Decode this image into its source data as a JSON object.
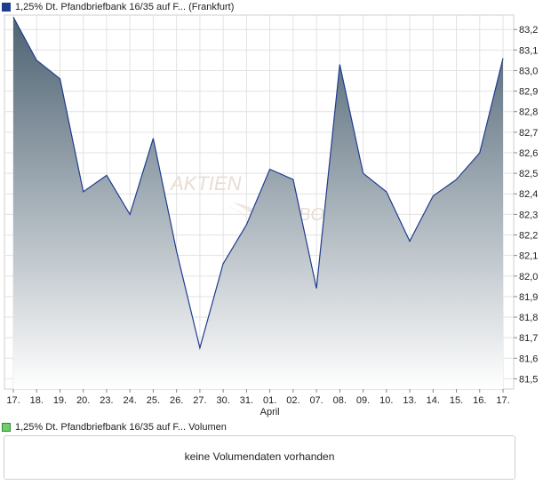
{
  "legend": {
    "price_label": "1,25% Dt. Pfandbriefbank 16/35 auf F... (Frankfurt)",
    "volume_label": "1,25% Dt. Pfandbriefbank 16/35 auf F... Volumen"
  },
  "volume": {
    "empty_message": "keine Volumendaten vorhanden"
  },
  "watermark": {
    "text": "AKTIEN"
  },
  "colors": {
    "line": "#1f3d8f",
    "fill_top": "#4d6272",
    "fill_bottom": "#ffffff",
    "grid": "#e2e2e2"
  },
  "chart_data": {
    "type": "area",
    "x": [
      "17.",
      "18.",
      "19.",
      "20.",
      "23.",
      "24.",
      "25.",
      "26.",
      "27.",
      "30.",
      "31.",
      "01.",
      "02.",
      "07.",
      "08.",
      "09.",
      "10.",
      "13.",
      "14.",
      "15.",
      "16.",
      "17."
    ],
    "month_label": {
      "text": "April",
      "at_index": 11
    },
    "series": [
      {
        "values": [
          83.26,
          83.05,
          82.96,
          82.41,
          82.49,
          82.3,
          82.67,
          82.12,
          81.65,
          82.06,
          82.25,
          82.52,
          82.47,
          81.94,
          83.03,
          82.5,
          82.41,
          82.17,
          82.39,
          82.47,
          82.6,
          83.06
        ]
      }
    ],
    "ylim": [
      81.45,
      83.27
    ],
    "yticks": [
      "81,5",
      "81,6",
      "81,7",
      "81,8",
      "81,9",
      "82,0",
      "82,1",
      "82,2",
      "82,3",
      "82,4",
      "82,5",
      "82,6",
      "82,7",
      "82,8",
      "82,9",
      "83,0",
      "83,1",
      "83,2"
    ],
    "grid": true,
    "y_axis_position": "right"
  }
}
